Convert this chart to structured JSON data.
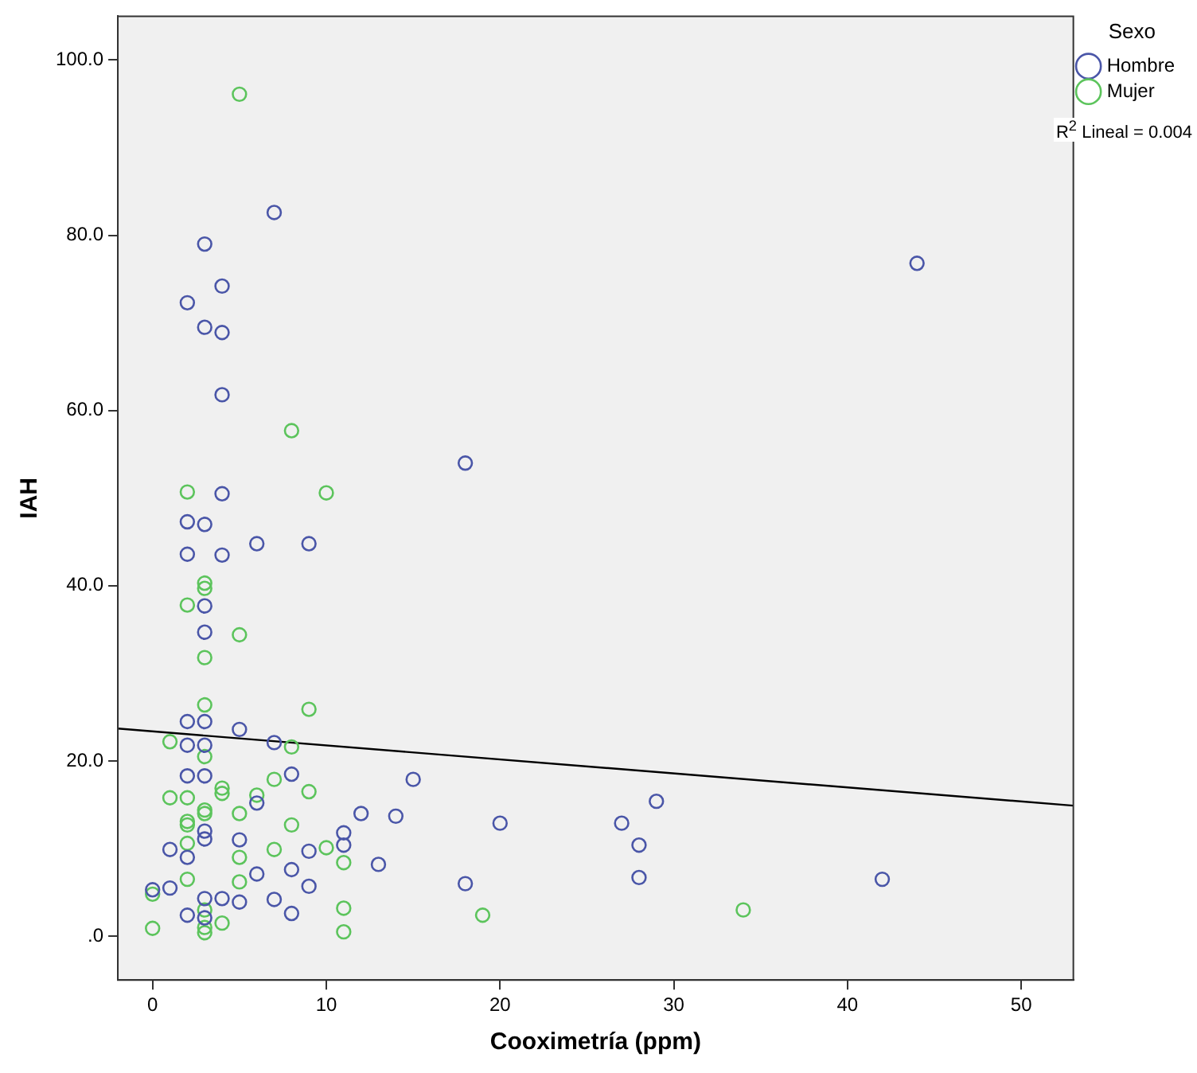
{
  "chart_data": {
    "type": "scatter",
    "xlabel": "Cooximetría (ppm)",
    "ylabel": "IAH",
    "legend_title": "Sexo",
    "legend": "top right",
    "grid": false,
    "marker": "circle",
    "xlim": [
      -2,
      53
    ],
    "ylim": [
      -5,
      105
    ],
    "xticks": [
      0,
      10,
      20,
      30,
      40,
      50
    ],
    "yticks": [
      {
        "value": 0,
        "label": ".0"
      },
      {
        "value": 20,
        "label": "20.0"
      },
      {
        "value": 40,
        "label": "40.0"
      },
      {
        "value": 60,
        "label": "60.0"
      },
      {
        "value": 80,
        "label": "80.0"
      },
      {
        "value": 100,
        "label": "100.0"
      }
    ],
    "annotations": [
      "R$^{2}$ Lineal = 0.004"
    ],
    "series": [
      {
        "name": "Hombre",
        "color": "#4a56a8",
        "x": [
          7,
          3,
          4,
          2,
          3,
          4,
          4,
          18,
          4,
          2,
          3,
          2,
          4,
          6,
          9,
          3,
          3,
          2,
          3,
          5,
          2,
          3,
          7,
          2,
          3,
          8,
          15,
          6,
          12,
          14,
          3,
          3,
          5,
          11,
          11,
          1,
          2,
          9,
          13,
          8,
          6,
          18,
          9,
          1,
          0,
          3,
          4,
          5,
          7,
          2,
          8,
          3,
          44,
          20,
          27,
          29,
          28,
          28,
          42
        ],
        "values": [
          82.6,
          79,
          74.2,
          72.3,
          69.5,
          68.9,
          61.8,
          54,
          50.5,
          47.3,
          47,
          43.6,
          43.5,
          44.8,
          44.8,
          37.7,
          34.7,
          24.5,
          24.5,
          23.6,
          21.8,
          21.8,
          22.1,
          18.3,
          18.3,
          18.5,
          17.9,
          15.2,
          14,
          13.7,
          12,
          11.1,
          11,
          11.8,
          10.4,
          9.9,
          9,
          9.7,
          8.2,
          7.6,
          7.1,
          6,
          5.7,
          5.5,
          5.3,
          4.3,
          4.3,
          3.9,
          4.2,
          2.4,
          2.6,
          2.1,
          76.8,
          12.9,
          12.9,
          15.4,
          10.4,
          6.7,
          6.5
        ]
      },
      {
        "name": "Mujer",
        "color": "#5cc45c",
        "x": [
          5,
          8,
          2,
          10,
          3,
          3,
          2,
          5,
          3,
          3,
          9,
          1,
          8,
          3,
          7,
          4,
          4,
          1,
          2,
          6,
          9,
          3,
          3,
          5,
          2,
          2,
          8,
          2,
          5,
          7,
          10,
          11,
          2,
          5,
          0,
          3,
          11,
          0,
          3,
          3,
          4,
          11,
          19,
          34
        ],
        "values": [
          96.1,
          57.7,
          50.7,
          50.6,
          40.3,
          39.7,
          37.8,
          34.4,
          31.8,
          26.4,
          25.9,
          22.2,
          21.6,
          20.5,
          17.9,
          16.9,
          16.3,
          15.8,
          15.8,
          16.1,
          16.5,
          14.4,
          14,
          14,
          13.1,
          12.7,
          12.7,
          10.6,
          9,
          9.9,
          10.1,
          8.4,
          6.5,
          6.2,
          4.8,
          3,
          3.2,
          0.9,
          1,
          0.4,
          1.5,
          0.5,
          2.4,
          3
        ]
      },
      {
        "type": "line",
        "marker": "none",
        "color": "#000000",
        "x": [
          -2,
          53
        ],
        "values": [
          23.7,
          14.9
        ]
      }
    ]
  }
}
